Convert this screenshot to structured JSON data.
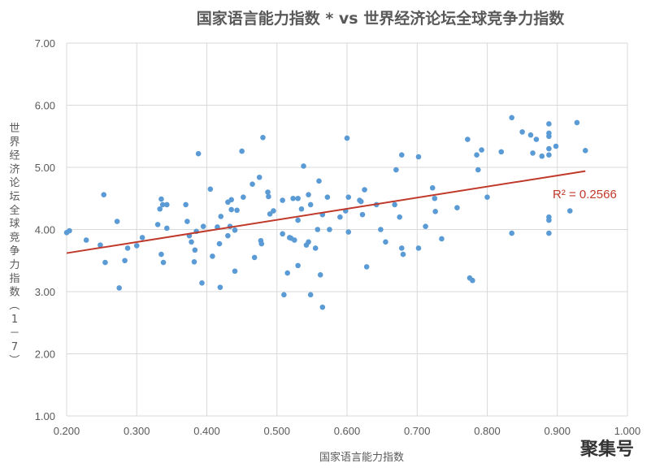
{
  "chart_data": {
    "type": "scatter",
    "title": "国家语言能力指数 * vs 世界经济论坛全球竞争力指数",
    "xlabel": "国家语言能力指数",
    "ylabel": "世界经济论坛全球竞争力指数（1－7）",
    "xlim": [
      0.2,
      1.0
    ],
    "ylim": [
      1.0,
      7.0
    ],
    "x_ticks": [
      "0.200",
      "0.300",
      "0.400",
      "0.500",
      "0.600",
      "0.700",
      "0.800",
      "0.900",
      "1.000"
    ],
    "y_ticks": [
      "1.00",
      "2.00",
      "3.00",
      "4.00",
      "5.00",
      "6.00",
      "7.00"
    ],
    "grid": true,
    "marker_color": "#5b9bd5",
    "trendline": {
      "type": "linear",
      "x": [
        0.2,
        0.94
      ],
      "y": [
        3.62,
        4.94
      ],
      "color": "#c0392b",
      "label": "R² = 0.2566"
    },
    "points": [
      [
        0.2,
        3.95
      ],
      [
        0.204,
        3.98
      ],
      [
        0.228,
        3.83
      ],
      [
        0.248,
        3.75
      ],
      [
        0.253,
        4.56
      ],
      [
        0.255,
        3.47
      ],
      [
        0.272,
        4.13
      ],
      [
        0.275,
        3.06
      ],
      [
        0.283,
        3.5
      ],
      [
        0.287,
        3.7
      ],
      [
        0.3,
        3.74
      ],
      [
        0.308,
        3.87
      ],
      [
        0.33,
        4.08
      ],
      [
        0.333,
        4.33
      ],
      [
        0.335,
        4.49
      ],
      [
        0.337,
        4.4
      ],
      [
        0.335,
        3.6
      ],
      [
        0.338,
        3.47
      ],
      [
        0.343,
        4.02
      ],
      [
        0.343,
        4.4
      ],
      [
        0.37,
        4.4
      ],
      [
        0.372,
        4.13
      ],
      [
        0.375,
        3.9
      ],
      [
        0.378,
        3.8
      ],
      [
        0.382,
        3.48
      ],
      [
        0.383,
        3.67
      ],
      [
        0.385,
        3.97
      ],
      [
        0.388,
        5.22
      ],
      [
        0.393,
        3.14
      ],
      [
        0.395,
        4.05
      ],
      [
        0.405,
        4.65
      ],
      [
        0.408,
        3.57
      ],
      [
        0.415,
        4.04
      ],
      [
        0.418,
        3.77
      ],
      [
        0.419,
        3.07
      ],
      [
        0.42,
        4.21
      ],
      [
        0.43,
        3.9
      ],
      [
        0.43,
        4.44
      ],
      [
        0.433,
        4.05
      ],
      [
        0.435,
        4.48
      ],
      [
        0.435,
        4.32
      ],
      [
        0.44,
        3.99
      ],
      [
        0.44,
        3.33
      ],
      [
        0.443,
        4.31
      ],
      [
        0.45,
        5.26
      ],
      [
        0.452,
        4.52
      ],
      [
        0.465,
        4.73
      ],
      [
        0.468,
        3.55
      ],
      [
        0.475,
        4.84
      ],
      [
        0.477,
        3.82
      ],
      [
        0.478,
        3.77
      ],
      [
        0.48,
        5.48
      ],
      [
        0.487,
        4.6
      ],
      [
        0.488,
        4.53
      ],
      [
        0.49,
        4.25
      ],
      [
        0.495,
        4.3
      ],
      [
        0.508,
        4.47
      ],
      [
        0.508,
        3.93
      ],
      [
        0.51,
        2.95
      ],
      [
        0.515,
        3.3
      ],
      [
        0.518,
        3.87
      ],
      [
        0.52,
        3.86
      ],
      [
        0.523,
        4.5
      ],
      [
        0.525,
        3.83
      ],
      [
        0.53,
        4.5
      ],
      [
        0.53,
        4.15
      ],
      [
        0.53,
        3.42
      ],
      [
        0.535,
        4.33
      ],
      [
        0.538,
        5.02
      ],
      [
        0.542,
        3.75
      ],
      [
        0.545,
        4.56
      ],
      [
        0.545,
        3.8
      ],
      [
        0.548,
        4.4
      ],
      [
        0.548,
        2.95
      ],
      [
        0.555,
        3.7
      ],
      [
        0.558,
        4.0
      ],
      [
        0.56,
        4.78
      ],
      [
        0.562,
        3.27
      ],
      [
        0.565,
        4.24
      ],
      [
        0.565,
        2.75
      ],
      [
        0.572,
        4.52
      ],
      [
        0.575,
        4.0
      ],
      [
        0.59,
        4.2
      ],
      [
        0.598,
        4.3
      ],
      [
        0.6,
        5.47
      ],
      [
        0.602,
        4.52
      ],
      [
        0.602,
        3.96
      ],
      [
        0.618,
        4.47
      ],
      [
        0.62,
        4.45
      ],
      [
        0.622,
        4.24
      ],
      [
        0.625,
        4.64
      ],
      [
        0.628,
        3.4
      ],
      [
        0.642,
        4.4
      ],
      [
        0.648,
        4.0
      ],
      [
        0.655,
        3.8
      ],
      [
        0.668,
        4.4
      ],
      [
        0.67,
        4.96
      ],
      [
        0.675,
        4.2
      ],
      [
        0.678,
        3.7
      ],
      [
        0.678,
        5.2
      ],
      [
        0.68,
        3.6
      ],
      [
        0.702,
        5.17
      ],
      [
        0.702,
        3.7
      ],
      [
        0.712,
        4.05
      ],
      [
        0.722,
        4.67
      ],
      [
        0.725,
        4.5
      ],
      [
        0.726,
        4.29
      ],
      [
        0.735,
        3.85
      ],
      [
        0.757,
        4.35
      ],
      [
        0.772,
        5.45
      ],
      [
        0.775,
        3.22
      ],
      [
        0.779,
        3.18
      ],
      [
        0.785,
        5.2
      ],
      [
        0.787,
        4.96
      ],
      [
        0.792,
        5.28
      ],
      [
        0.8,
        4.52
      ],
      [
        0.82,
        5.25
      ],
      [
        0.835,
        3.94
      ],
      [
        0.835,
        5.8
      ],
      [
        0.85,
        5.57
      ],
      [
        0.862,
        5.52
      ],
      [
        0.865,
        5.23
      ],
      [
        0.87,
        5.45
      ],
      [
        0.878,
        5.18
      ],
      [
        0.888,
        5.7
      ],
      [
        0.888,
        5.55
      ],
      [
        0.888,
        5.5
      ],
      [
        0.888,
        5.3
      ],
      [
        0.888,
        5.2
      ],
      [
        0.888,
        4.2
      ],
      [
        0.888,
        4.15
      ],
      [
        0.888,
        3.94
      ],
      [
        0.898,
        5.34
      ],
      [
        0.918,
        4.3
      ],
      [
        0.928,
        5.72
      ],
      [
        0.94,
        5.27
      ]
    ]
  },
  "watermark": "聚集号"
}
